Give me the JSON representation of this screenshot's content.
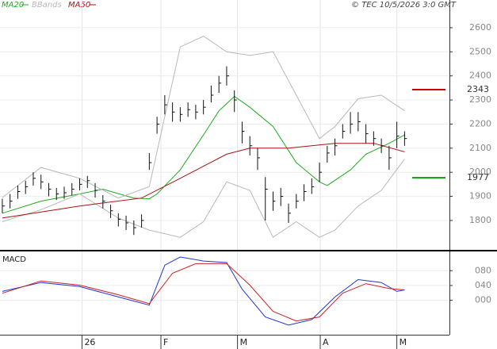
{
  "chart_data": [
    {
      "type": "ohlc",
      "copyright": "© TEC 10/5/2026 3:0 GMT",
      "high": [
        1890,
        1910,
        1945,
        1965,
        2000,
        1990,
        1955,
        1935,
        1940,
        1955,
        1975,
        1985,
        1955,
        1905,
        1865,
        1830,
        1820,
        1800,
        1825,
        2080,
        2230,
        2320,
        2290,
        2270,
        2290,
        2280,
        2300,
        2360,
        2400,
        2440,
        2340,
        2210,
        2150,
        2100,
        1980,
        1920,
        1935,
        1870,
        1910,
        1950,
        1975,
        2040,
        2110,
        2140,
        2200,
        2250,
        2250,
        2200,
        2170,
        2140,
        2110,
        2210,
        2170
      ],
      "low": [
        1830,
        1850,
        1890,
        1910,
        1945,
        1930,
        1900,
        1885,
        1890,
        1905,
        1925,
        1935,
        1895,
        1850,
        1810,
        1775,
        1760,
        1740,
        1770,
        2010,
        2160,
        2240,
        2210,
        2210,
        2230,
        2220,
        2240,
        2290,
        2330,
        2360,
        2250,
        2120,
        2070,
        2010,
        1800,
        1840,
        1860,
        1790,
        1850,
        1880,
        1910,
        1960,
        2040,
        2070,
        2140,
        2160,
        2170,
        2120,
        2110,
        2080,
        2010,
        2100,
        2110
      ],
      "close": [
        1860,
        1880,
        1920,
        1940,
        1975,
        1960,
        1930,
        1910,
        1915,
        1930,
        1950,
        1965,
        1925,
        1880,
        1840,
        1805,
        1790,
        1770,
        1800,
        2040,
        2200,
        2280,
        2250,
        2240,
        2260,
        2250,
        2270,
        2320,
        2370,
        2400,
        2300,
        2170,
        2110,
        2060,
        1930,
        1880,
        1900,
        1830,
        1880,
        1920,
        1940,
        2000,
        2080,
        2110,
        2170,
        2200,
        2210,
        2160,
        2140,
        2110,
        2060,
        2150,
        2140
      ],
      "series": [
        {
          "name": "MA20",
          "color": "#1faa1f",
          "x": [
            0,
            5,
            10,
            13,
            17,
            19,
            20,
            23,
            26,
            28,
            30,
            32,
            35,
            38,
            41,
            42,
            45,
            47,
            50,
            52
          ],
          "values": [
            1830,
            1880,
            1910,
            1930,
            1893,
            1890,
            1910,
            2010,
            2155,
            2255,
            2315,
            2270,
            2190,
            2040,
            1960,
            1945,
            2010,
            2075,
            2120,
            2155
          ]
        },
        {
          "name": "BBands",
          "color": "#b8b8b8",
          "x": [
            0,
            5,
            10,
            15,
            19,
            23,
            26,
            29,
            32,
            35,
            38,
            41,
            43,
            46,
            49,
            52
          ],
          "upper": [
            1895,
            2020,
            1975,
            1893,
            1940,
            2520,
            2565,
            2500,
            2485,
            2500,
            2320,
            2140,
            2190,
            2305,
            2320,
            2255
          ],
          "lower": [
            1795,
            1845,
            1910,
            1810,
            1760,
            1730,
            1795,
            1960,
            1925,
            1730,
            1795,
            1730,
            1760,
            1860,
            1925,
            2055
          ]
        },
        {
          "name": "MA50",
          "color": "#aa1111",
          "x": [
            0,
            10,
            18,
            23,
            29,
            32,
            37,
            43,
            48,
            52
          ],
          "values": [
            1810,
            1860,
            1893,
            1975,
            2075,
            2100,
            2100,
            2120,
            2120,
            2085
          ]
        }
      ],
      "markers": [
        {
          "value": 2343,
          "color": "#cc0000"
        },
        {
          "value": 1977,
          "color": "#119911"
        }
      ],
      "xlim": [
        -0.3,
        57.8
      ],
      "xticks": [
        {
          "value": 10.3,
          "label": "26"
        },
        {
          "value": 20.5,
          "label": "F"
        },
        {
          "value": 30.4,
          "label": "M"
        },
        {
          "value": 41.1,
          "label": "A"
        },
        {
          "value": 51.0,
          "label": "M"
        }
      ],
      "ylim": [
        1678,
        2715
      ],
      "yticks": [
        1800,
        1900,
        2000,
        2100,
        2200,
        2300,
        2400,
        2500,
        2600
      ]
    },
    {
      "type": "line",
      "title": "MACD",
      "series": [
        {
          "color": "#2233cc",
          "x": [
            0,
            5,
            10,
            15,
            19,
            21,
            23,
            26,
            29,
            31,
            34,
            37,
            40,
            43,
            46,
            49,
            51,
            52
          ],
          "values": [
            24,
            48,
            37,
            9,
            -13,
            95,
            117,
            106,
            102,
            30,
            -45,
            -67,
            -52,
            9,
            56,
            48,
            24,
            28
          ]
        },
        {
          "color": "#cc2222",
          "x": [
            0,
            5,
            10,
            15,
            19,
            22,
            25,
            29,
            32,
            35,
            38,
            41,
            44,
            47,
            50,
            52
          ],
          "values": [
            19,
            52,
            41,
            15,
            -9,
            73,
            99,
            99,
            41,
            -30,
            -56,
            -45,
            19,
            45,
            32,
            28
          ]
        }
      ],
      "ylim": [
        -93,
        132
      ],
      "yticks": [
        {
          "value": 0,
          "label": "000"
        },
        {
          "value": 40,
          "label": "040"
        },
        {
          "value": 80,
          "label": "080"
        }
      ]
    }
  ]
}
